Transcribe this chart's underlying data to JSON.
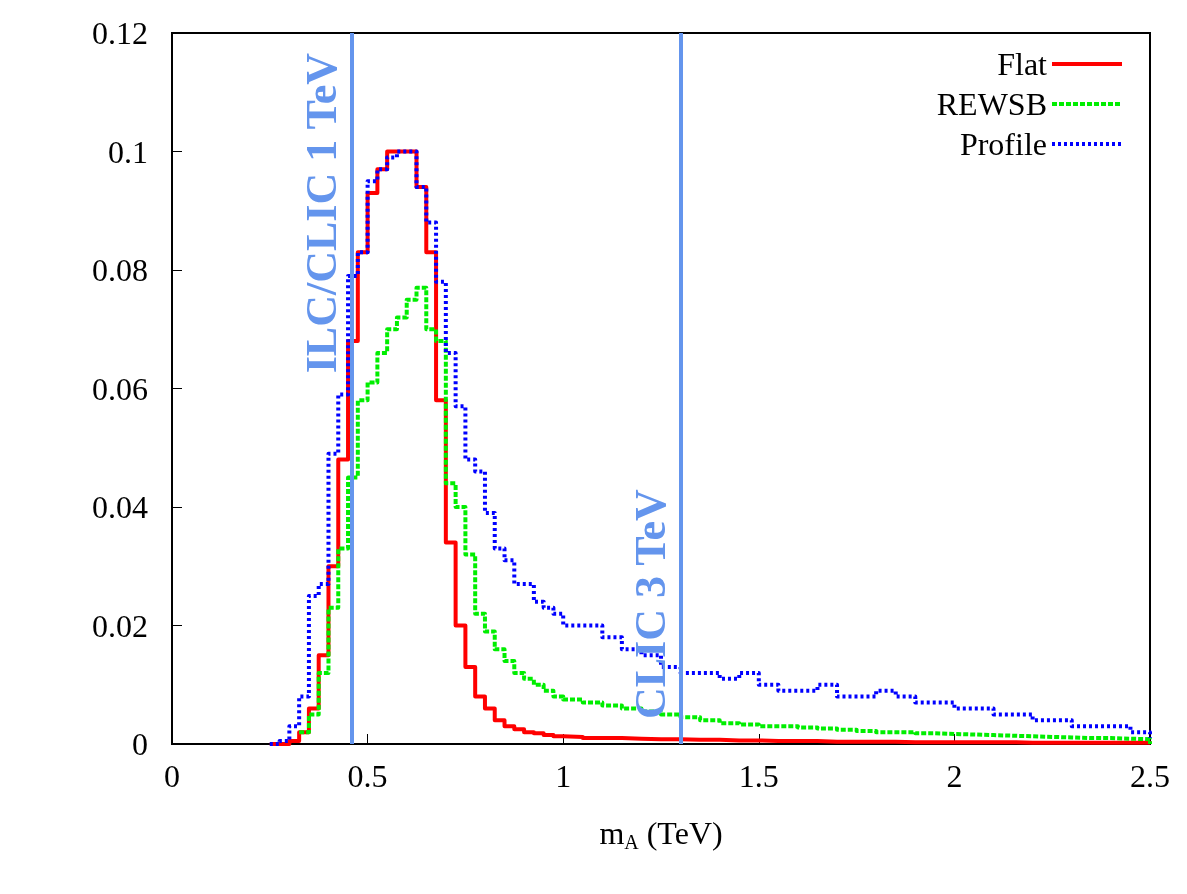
{
  "chart_data": {
    "type": "step",
    "xlabel": "m$_{A}$ (TeV)",
    "x": [
      0.25,
      0.275,
      0.3,
      0.325,
      0.35,
      0.375,
      0.4,
      0.425,
      0.45,
      0.475,
      0.5,
      0.525,
      0.55,
      0.575,
      0.6,
      0.625,
      0.65,
      0.675,
      0.7,
      0.725,
      0.75,
      0.775,
      0.8,
      0.825,
      0.85,
      0.875,
      0.9,
      0.925,
      0.95,
      0.975,
      1.0,
      1.05,
      1.1,
      1.15,
      1.2,
      1.25,
      1.3,
      1.35,
      1.4,
      1.45,
      1.5,
      1.55,
      1.6,
      1.65,
      1.7,
      1.75,
      1.8,
      1.85,
      1.9,
      1.95,
      2.0,
      2.05,
      2.1,
      2.15,
      2.2,
      2.25,
      2.3,
      2.35,
      2.4,
      2.45,
      2.5
    ],
    "series": [
      {
        "name": "Flat",
        "color": "#ff0000",
        "line_style": "solid",
        "values": [
          0,
          0,
          0.0005,
          0.002,
          0.006,
          0.015,
          0.03,
          0.048,
          0.068,
          0.083,
          0.093,
          0.097,
          0.1,
          0.1,
          0.1,
          0.094,
          0.083,
          0.058,
          0.034,
          0.02,
          0.013,
          0.008,
          0.006,
          0.004,
          0.003,
          0.0025,
          0.002,
          0.0018,
          0.0015,
          0.0013,
          0.0012,
          0.001,
          0.001,
          0.0009,
          0.0008,
          0.0008,
          0.0007,
          0.0007,
          0.0006,
          0.0006,
          0.0005,
          0.0005,
          0.0005,
          0.0004,
          0.0004,
          0.0004,
          0.0004,
          0.0003,
          0.0003,
          0.0003,
          0.0003,
          0.0003,
          0.0003,
          0.0002,
          0.0002,
          0.0002,
          0.0002,
          0.0002,
          0.0002,
          0.0002,
          0
        ]
      },
      {
        "name": "REWSB",
        "color": "#00ee00",
        "line_style": "dashed",
        "values": [
          null,
          null,
          null,
          0.002,
          0.005,
          0.012,
          0.023,
          0.033,
          0.045,
          0.058,
          0.061,
          0.066,
          0.07,
          0.072,
          0.075,
          0.077,
          0.07,
          0.068,
          0.044,
          0.04,
          0.032,
          0.022,
          0.019,
          0.016,
          0.014,
          0.012,
          0.011,
          0.01,
          0.009,
          0.008,
          0.0075,
          0.007,
          0.0065,
          0.006,
          0.0055,
          0.005,
          0.0045,
          0.004,
          0.0035,
          0.0033,
          0.003,
          0.003,
          0.0028,
          0.0026,
          0.0024,
          0.0022,
          0.002,
          0.002,
          0.0018,
          0.0017,
          0.0016,
          0.0015,
          0.0014,
          0.0013,
          0.0012,
          0.0011,
          0.001,
          0.001,
          0.0009,
          0.0008,
          0
        ]
      },
      {
        "name": "Profile",
        "color": "#0000ff",
        "line_style": "dotted",
        "values": [
          0,
          0.0005,
          0.003,
          0.008,
          0.025,
          0.027,
          0.049,
          0.059,
          0.079,
          0.083,
          0.095,
          0.097,
          0.099,
          0.1,
          0.1,
          0.094,
          0.088,
          0.078,
          0.066,
          0.057,
          0.048,
          0.046,
          0.039,
          0.033,
          0.031,
          0.027,
          0.027,
          0.024,
          0.023,
          0.022,
          0.02,
          0.02,
          0.018,
          0.016,
          0.015,
          0.013,
          0.012,
          0.012,
          0.011,
          0.012,
          0.01,
          0.009,
          0.009,
          0.01,
          0.008,
          0.008,
          0.009,
          0.008,
          0.007,
          0.007,
          0.006,
          0.006,
          0.005,
          0.005,
          0.004,
          0.004,
          0.003,
          0.003,
          0.003,
          0.002,
          0.001
        ]
      }
    ],
    "xlim": [
      0,
      2.5
    ],
    "xticks": [
      0,
      0.5,
      1,
      1.5,
      2,
      2.5
    ],
    "ylim": [
      0,
      0.12
    ],
    "yticks": [
      0,
      0.02,
      0.04,
      0.06,
      0.08,
      0.1,
      0.12
    ],
    "ref_lines": [
      {
        "axis": "x",
        "value": 0.455,
        "label": "ILC/CLIC 1 TeV",
        "color": "#6495ed"
      },
      {
        "axis": "x",
        "value": 1.3,
        "label": "CLIC 3 TeV",
        "color": "#6495ed"
      }
    ],
    "legend": "top right",
    "grid": false
  }
}
